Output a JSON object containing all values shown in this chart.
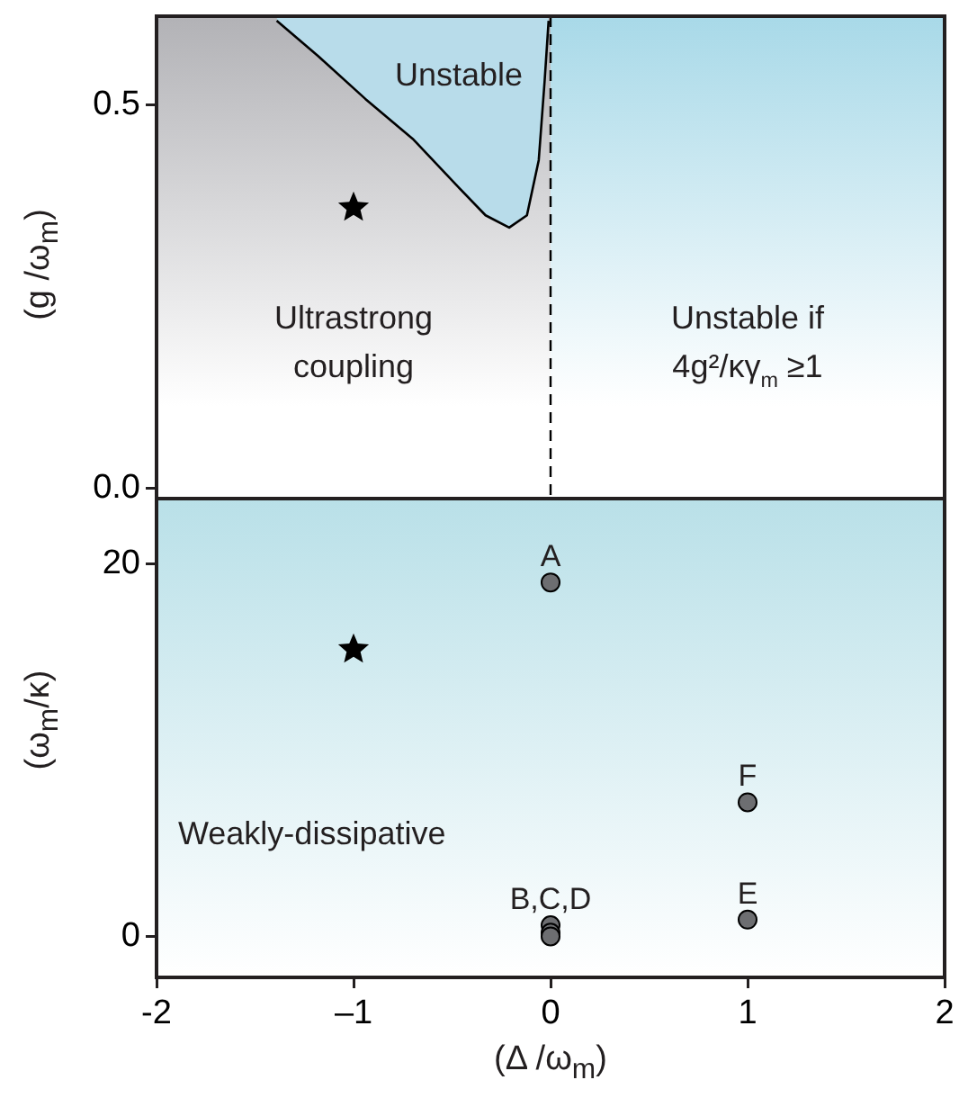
{
  "chart_data": [
    {
      "type": "scatter",
      "ylabel": "(g /ω$_{m}$)",
      "xlim": [
        -2,
        2
      ],
      "ylim": [
        -0.021,
        0.616
      ],
      "yticks": [
        {
          "value": 0,
          "label": "0.0"
        },
        0.5
      ],
      "tick_labels": "y",
      "series": [
        {
          "name": "Unstable",
          "type": "area",
          "color": "#b8dcea",
          "x": [
            -1.39,
            -1.18,
            -0.94,
            -0.7,
            -0.48,
            -0.33,
            -0.21,
            -0.12,
            -0.06,
            -0.03,
            -0.01
          ],
          "values": [
            0.61,
            0.564,
            0.508,
            0.456,
            0.396,
            0.356,
            0.34,
            0.356,
            0.428,
            0.532,
            0.61
          ]
        },
        {
          "type": "scatter",
          "marker": "star",
          "color": "#000000",
          "x": [
            -1
          ],
          "values": [
            0.366
          ]
        }
      ],
      "ref_lines": [
        {
          "axis": "x",
          "value": 0,
          "color": "#000000",
          "line_style": "dashed"
        }
      ],
      "bands": [
        {
          "axis": "x",
          "from": -2,
          "to": 0,
          "label": "Ultrastrong coupling",
          "color": "#b2b2b6"
        },
        {
          "axis": "x",
          "from": 0,
          "to": 2,
          "label": "Unstable if 4g²/κγ$_{m}$ ≥1",
          "color": "#a8d9e8"
        }
      ]
    },
    {
      "type": "scatter",
      "xlabel": "(Δ /ω$_{m}$)",
      "ylabel": "(ω$_{m}$/κ)",
      "xlim": [
        -2,
        2
      ],
      "ylim": [
        -2.2,
        23.5
      ],
      "xticks": [
        -2,
        {
          "value": -1,
          "label": "–1"
        },
        0,
        1,
        2
      ],
      "yticks": [
        0,
        20
      ],
      "series": [
        {
          "type": "scatter",
          "marker": "star",
          "color": "#000000",
          "x": [
            -1
          ],
          "values": [
            15.4
          ]
        },
        {
          "type": "scatter",
          "marker": "circle",
          "color": "#6d6e71",
          "x": [
            0,
            0,
            0,
            0,
            1,
            1
          ],
          "values": [
            19,
            0.6,
            0.2,
            0,
            7.2,
            0.9
          ],
          "value_labels": [
            "A",
            "B,C,D",
            null,
            null,
            "F",
            "E"
          ]
        }
      ],
      "bands": [
        {
          "axis": "y",
          "from": -2.2,
          "to": 23.5,
          "label": "Weakly-dissipative",
          "color": "#b9e0e8"
        }
      ]
    }
  ]
}
